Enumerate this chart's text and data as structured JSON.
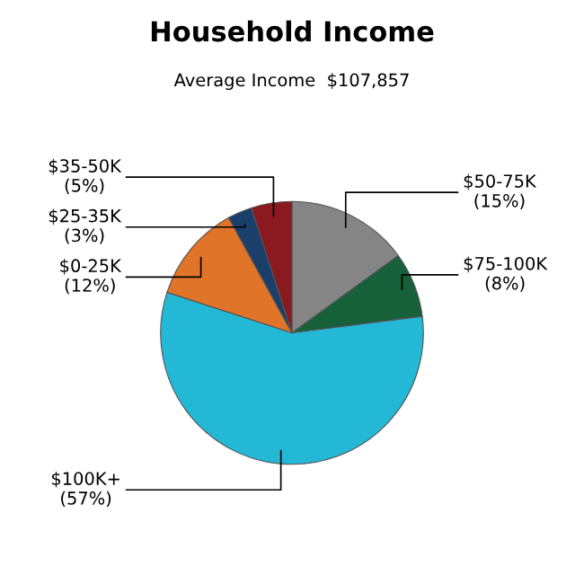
{
  "chart_data": {
    "type": "pie",
    "title": "Household Income",
    "subtitle": "Average Income  $107,857",
    "categories": [
      "$50-75K",
      "$75-100K",
      "$100K+",
      "$0-25K",
      "$25-35K",
      "$35-50K"
    ],
    "values": [
      15,
      8,
      57,
      12,
      3,
      5
    ],
    "value_labels": [
      "(15%)",
      "(8%)",
      "(57%)",
      "(12%)",
      "(3%)",
      "(5%)"
    ],
    "colors": [
      "#858585",
      "#16603a",
      "#22b8d6",
      "#e07428",
      "#1b3f6b",
      "#8a1a1f"
    ],
    "legend": false
  }
}
